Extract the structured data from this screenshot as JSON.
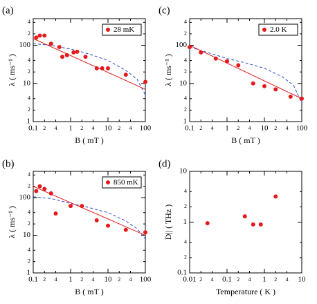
{
  "chart_data": [
    {
      "type": "scatter",
      "panel_label": "(a)",
      "xlabel": "B ( mT )",
      "ylabel": "λ ( ms⁻¹ )",
      "log_x": true,
      "log_y": true,
      "xlim": [
        0.1,
        100
      ],
      "ylim": [
        1,
        500
      ],
      "xticks": [
        0.1,
        {
          "value": 0.2,
          "label": "2"
        },
        {
          "value": 0.4,
          "label": "4"
        },
        1,
        {
          "value": 2,
          "label": "2"
        },
        {
          "value": 4,
          "label": "4"
        },
        10,
        {
          "value": 20,
          "label": "2"
        },
        {
          "value": 40,
          "label": "4"
        },
        100
      ],
      "yticks": [
        1,
        {
          "value": 2,
          "label": "2"
        },
        {
          "value": 4,
          "label": "4"
        },
        10,
        {
          "value": 20,
          "label": "2"
        },
        {
          "value": 40,
          "label": "4"
        },
        100,
        {
          "value": 200,
          "label": "2"
        },
        {
          "value": 400,
          "label": "4"
        }
      ],
      "x": [
        0.12,
        0.15,
        0.2,
        0.3,
        0.5,
        0.6,
        0.8,
        1.2,
        1.5,
        2.5,
        5,
        7,
        10,
        30,
        100
      ],
      "series": [
        {
          "name": "28 mK",
          "color": "#e41a1c",
          "values": [
            160,
            180,
            180,
            110,
            90,
            50,
            55,
            65,
            68,
            50,
            25,
            25,
            25,
            17,
            11
          ]
        }
      ],
      "fit_line": {
        "color": "#e41a1c",
        "x": [
          0.1,
          100
        ],
        "y": [
          150,
          7
        ]
      },
      "model_curve": {
        "color": "#2244cc",
        "x": [
          0.1,
          0.3,
          1,
          3,
          10,
          30,
          60,
          100
        ],
        "y": [
          110,
          100,
          80,
          60,
          40,
          22,
          13,
          5
        ]
      }
    },
    {
      "type": "scatter",
      "panel_label": "(c)",
      "xlabel": "B ( mT )",
      "ylabel": "λ ( ms⁻¹ )",
      "log_x": true,
      "log_y": true,
      "xlim": [
        0.1,
        100
      ],
      "ylim": [
        1,
        500
      ],
      "xticks": [
        0.1,
        {
          "value": 0.2,
          "label": "2"
        },
        {
          "value": 0.4,
          "label": "4"
        },
        1,
        {
          "value": 2,
          "label": "2"
        },
        {
          "value": 4,
          "label": "4"
        },
        10,
        {
          "value": 20,
          "label": "2"
        },
        {
          "value": 40,
          "label": "4"
        },
        100
      ],
      "yticks": [
        1,
        {
          "value": 2,
          "label": "2"
        },
        {
          "value": 4,
          "label": "4"
        },
        10,
        {
          "value": 20,
          "label": "2"
        },
        {
          "value": 40,
          "label": "4"
        },
        100,
        {
          "value": 200,
          "label": "2"
        },
        {
          "value": 400,
          "label": "4"
        }
      ],
      "x": [
        0.1,
        0.2,
        0.5,
        1,
        2,
        5,
        10,
        20,
        50,
        100
      ],
      "series": [
        {
          "name": "2.0 K",
          "color": "#e41a1c",
          "values": [
            90,
            65,
            45,
            38,
            30,
            10,
            8.5,
            7,
            4.5,
            4
          ]
        }
      ],
      "fit_line": {
        "color": "#e41a1c",
        "x": [
          0.1,
          100
        ],
        "y": [
          100,
          4
        ]
      },
      "model_curve": {
        "color": "#2244cc",
        "x": [
          0.1,
          0.3,
          1,
          3,
          10,
          30,
          60,
          100
        ],
        "y": [
          90,
          65,
          45,
          35,
          25,
          15,
          9,
          3
        ]
      }
    },
    {
      "type": "scatter",
      "panel_label": "(b)",
      "xlabel": "B ( mT )",
      "ylabel": "λ ( ms⁻¹ )",
      "log_x": true,
      "log_y": true,
      "xlim": [
        0.1,
        100
      ],
      "ylim": [
        1,
        500
      ],
      "xticks": [
        0.1,
        {
          "value": 0.2,
          "label": "2"
        },
        {
          "value": 0.4,
          "label": "4"
        },
        1,
        {
          "value": 2,
          "label": "2"
        },
        {
          "value": 4,
          "label": "4"
        },
        10,
        {
          "value": 20,
          "label": "2"
        },
        {
          "value": 40,
          "label": "4"
        },
        100
      ],
      "yticks": [
        1,
        {
          "value": 2,
          "label": "2"
        },
        {
          "value": 4,
          "label": "4"
        },
        10,
        {
          "value": 20,
          "label": "2"
        },
        {
          "value": 40,
          "label": "4"
        },
        100,
        {
          "value": 200,
          "label": "2"
        },
        {
          "value": 400,
          "label": "4"
        }
      ],
      "x": [
        0.12,
        0.15,
        0.2,
        0.3,
        0.4,
        1,
        2,
        5,
        10,
        30,
        100
      ],
      "series": [
        {
          "name": "850 mK",
          "color": "#e41a1c",
          "values": [
            150,
            200,
            170,
            130,
            38,
            60,
            60,
            25,
            18,
            14,
            12
          ]
        }
      ],
      "fit_line": {
        "color": "#e41a1c",
        "x": [
          0.1,
          100
        ],
        "y": [
          200,
          10
        ]
      },
      "model_curve": {
        "color": "#2244cc",
        "x": [
          0.1,
          0.3,
          1,
          3,
          10,
          30,
          60,
          100
        ],
        "y": [
          105,
          95,
          70,
          55,
          40,
          24,
          15,
          8
        ]
      }
    },
    {
      "type": "scatter",
      "panel_label": "(d)",
      "xlabel": "Temperature ( K )",
      "ylabel": "D|| ( THz )",
      "log_x": true,
      "log_y": true,
      "xlim": [
        0.01,
        10
      ],
      "ylim": [
        0.1,
        10
      ],
      "xticks": [
        0.01,
        {
          "value": 0.02,
          "label": "2"
        },
        {
          "value": 0.04,
          "label": "4"
        },
        0.1,
        {
          "value": 0.2,
          "label": "2"
        },
        {
          "value": 0.4,
          "label": "4"
        },
        1,
        {
          "value": 2,
          "label": "2"
        },
        {
          "value": 4,
          "label": "4"
        },
        10
      ],
      "yticks": [
        0.1,
        {
          "value": 0.2,
          "label": "2"
        },
        {
          "value": 0.4,
          "label": "4"
        },
        1,
        {
          "value": 2,
          "label": "2"
        },
        {
          "value": 4,
          "label": "4"
        },
        10
      ],
      "x": [
        0.03,
        0.3,
        0.5,
        0.8,
        2
      ],
      "series": [
        {
          "color": "#e41a1c",
          "values": [
            0.95,
            1.3,
            0.9,
            0.9,
            3.2
          ]
        }
      ]
    }
  ]
}
